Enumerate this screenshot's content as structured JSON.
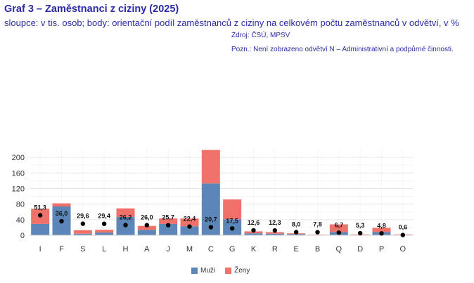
{
  "title": "Graf 3 – Zaměstnanci z ciziny (2025)",
  "subtitle": "sloupce: v tis. osob; body: orientační podíl zaměstnanců z ciziny na celkovém počtu zaměstnanců v odvětví, v %",
  "source": "Zdroj: ČSÚ, MPSV",
  "note": "Pozn.: Není zobrazeno odvětví N – Administrativní a podpůrné činnosti.",
  "colors": {
    "muzi": "#5b86b7",
    "zeny": "#f0706a",
    "dot": "#000000"
  },
  "chart_data": {
    "type": "bar",
    "stacked": true,
    "categories": [
      "I",
      "F",
      "S",
      "L",
      "H",
      "A",
      "J",
      "M",
      "C",
      "G",
      "K",
      "R",
      "E",
      "B",
      "Q",
      "D",
      "P",
      "O"
    ],
    "series": [
      {
        "name": "Muži",
        "values": [
          29,
          74,
          4,
          7,
          47,
          14,
          29,
          23,
          133,
          41,
          5,
          4,
          3,
          1,
          8,
          1,
          8,
          1
        ]
      },
      {
        "name": "Ženy",
        "values": [
          39,
          8,
          9,
          7,
          22,
          10,
          14,
          20,
          86,
          51,
          5,
          4,
          2,
          0.5,
          20,
          1,
          11,
          1
        ]
      }
    ],
    "points": {
      "values": [
        51.3,
        36.0,
        29.6,
        29.4,
        26.2,
        26.0,
        25.7,
        22.4,
        20.7,
        17.5,
        12.6,
        12.3,
        8.0,
        7.8,
        6.7,
        5.3,
        4.8,
        0.6
      ],
      "labels": [
        "51,3",
        "36,0",
        "29,6",
        "29,4",
        "26,2",
        "26,0",
        "25,7",
        "22,4",
        "20,7",
        "17,5",
        "12,6",
        "12,3",
        "8,0",
        "7,8",
        "6,7",
        "5,3",
        "4,8",
        "0,6"
      ]
    },
    "yticks": [
      "0",
      "40",
      "80",
      "120",
      "160",
      "200"
    ],
    "ylim": [
      0,
      220
    ],
    "grid": true,
    "legend_position": "bottom"
  }
}
